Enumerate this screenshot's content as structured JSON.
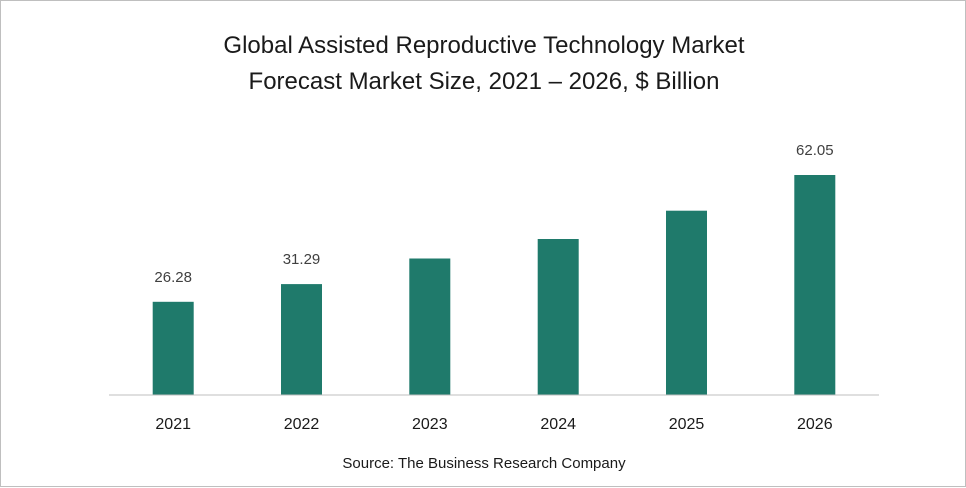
{
  "chart_data": {
    "type": "bar",
    "title": "Global Assisted Reproductive Technology Market",
    "subtitle": "Forecast Market Size, 2021 – 2026, $ Billion",
    "categories": [
      "2021",
      "2022",
      "2023",
      "2024",
      "2025",
      "2026"
    ],
    "values": [
      26.28,
      31.29,
      38.5,
      44.0,
      52.0,
      62.05
    ],
    "data_labels": [
      "26.28",
      "31.29",
      "",
      "",
      "",
      "62.05"
    ],
    "xlabel": "",
    "ylabel": "",
    "ylim": [
      0,
      70
    ],
    "grid": false,
    "legend": "none",
    "bar_color": "#1f7a6b"
  },
  "source": "Source: The Business Research Company"
}
